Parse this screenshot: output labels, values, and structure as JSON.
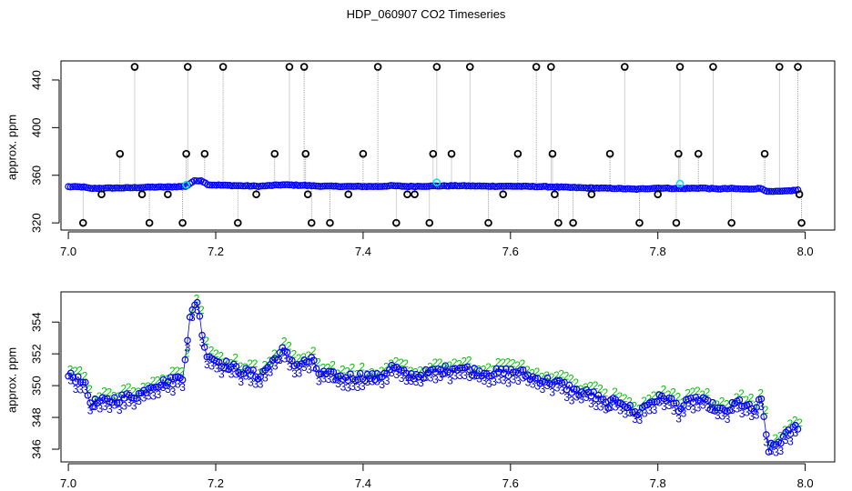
{
  "figure": {
    "title": "HDP_060907  CO2 Timeseries"
  },
  "chart_data": [
    {
      "type": "scatter",
      "title": "",
      "xlabel": "",
      "ylabel": "approx. ppm",
      "xlim": [
        6.99,
        8.04
      ],
      "ylim": [
        314,
        456
      ],
      "xticks": [
        7.0,
        7.2,
        7.4,
        7.6,
        7.8,
        8.0
      ],
      "xtick_labels": [
        "7.0",
        "7.2",
        "7.4",
        "7.6",
        "7.8",
        "8.0"
      ],
      "yticks": [
        320,
        360,
        400,
        440
      ],
      "ytick_labels": [
        "320",
        "360",
        "400",
        "440"
      ],
      "grid": false,
      "legend": "none",
      "colors": {
        "main": "#0000ff",
        "highlight": "#00e5ee",
        "outlier": "#000000",
        "spike_line": "#8c8c8c"
      },
      "baseline": [
        {
          "x": 7.0,
          "y": 350.4
        },
        {
          "x": 7.02,
          "y": 350.2
        },
        {
          "x": 7.03,
          "y": 348.9
        },
        {
          "x": 7.05,
          "y": 349.2
        },
        {
          "x": 7.08,
          "y": 349.4
        },
        {
          "x": 7.11,
          "y": 350.0
        },
        {
          "x": 7.14,
          "y": 350.2
        },
        {
          "x": 7.16,
          "y": 350.8
        },
        {
          "x": 7.17,
          "y": 355.2
        },
        {
          "x": 7.18,
          "y": 355.6
        },
        {
          "x": 7.19,
          "y": 352.0
        },
        {
          "x": 7.22,
          "y": 351.4
        },
        {
          "x": 7.26,
          "y": 350.8
        },
        {
          "x": 7.29,
          "y": 352.0
        },
        {
          "x": 7.32,
          "y": 351.5
        },
        {
          "x": 7.34,
          "y": 350.9
        },
        {
          "x": 7.38,
          "y": 350.6
        },
        {
          "x": 7.42,
          "y": 350.6
        },
        {
          "x": 7.44,
          "y": 351.2
        },
        {
          "x": 7.46,
          "y": 350.6
        },
        {
          "x": 7.5,
          "y": 351.0
        },
        {
          "x": 7.53,
          "y": 351.2
        },
        {
          "x": 7.57,
          "y": 350.8
        },
        {
          "x": 7.6,
          "y": 350.8
        },
        {
          "x": 7.64,
          "y": 350.5
        },
        {
          "x": 7.66,
          "y": 350.2
        },
        {
          "x": 7.7,
          "y": 349.4
        },
        {
          "x": 7.74,
          "y": 349.0
        },
        {
          "x": 7.77,
          "y": 348.3
        },
        {
          "x": 7.8,
          "y": 349.3
        },
        {
          "x": 7.83,
          "y": 348.8
        },
        {
          "x": 7.86,
          "y": 349.3
        },
        {
          "x": 7.88,
          "y": 348.5
        },
        {
          "x": 7.9,
          "y": 348.9
        },
        {
          "x": 7.92,
          "y": 348.3
        },
        {
          "x": 7.94,
          "y": 349.0
        },
        {
          "x": 7.95,
          "y": 346.2
        },
        {
          "x": 7.97,
          "y": 346.5
        },
        {
          "x": 7.99,
          "y": 347.6
        }
      ],
      "highlight_points": [
        {
          "x": 7.16,
          "y": 352
        },
        {
          "x": 7.5,
          "y": 354
        },
        {
          "x": 7.83,
          "y": 353
        }
      ],
      "outliers": [
        {
          "x": 7.02,
          "y": 320
        },
        {
          "x": 7.045,
          "y": 344
        },
        {
          "x": 7.07,
          "y": 378
        },
        {
          "x": 7.09,
          "y": 451
        },
        {
          "x": 7.1,
          "y": 344
        },
        {
          "x": 7.11,
          "y": 320
        },
        {
          "x": 7.135,
          "y": 344
        },
        {
          "x": 7.155,
          "y": 320
        },
        {
          "x": 7.16,
          "y": 378
        },
        {
          "x": 7.162,
          "y": 451
        },
        {
          "x": 7.185,
          "y": 378
        },
        {
          "x": 7.21,
          "y": 451
        },
        {
          "x": 7.23,
          "y": 320
        },
        {
          "x": 7.255,
          "y": 344
        },
        {
          "x": 7.28,
          "y": 378
        },
        {
          "x": 7.3,
          "y": 451
        },
        {
          "x": 7.32,
          "y": 451
        },
        {
          "x": 7.322,
          "y": 378
        },
        {
          "x": 7.325,
          "y": 344
        },
        {
          "x": 7.33,
          "y": 320
        },
        {
          "x": 7.355,
          "y": 320
        },
        {
          "x": 7.38,
          "y": 344
        },
        {
          "x": 7.4,
          "y": 378
        },
        {
          "x": 7.42,
          "y": 451
        },
        {
          "x": 7.445,
          "y": 320
        },
        {
          "x": 7.46,
          "y": 344
        },
        {
          "x": 7.47,
          "y": 344
        },
        {
          "x": 7.49,
          "y": 320
        },
        {
          "x": 7.495,
          "y": 378
        },
        {
          "x": 7.5,
          "y": 451
        },
        {
          "x": 7.52,
          "y": 378
        },
        {
          "x": 7.545,
          "y": 451
        },
        {
          "x": 7.57,
          "y": 320
        },
        {
          "x": 7.59,
          "y": 344
        },
        {
          "x": 7.61,
          "y": 378
        },
        {
          "x": 7.635,
          "y": 451
        },
        {
          "x": 7.655,
          "y": 451
        },
        {
          "x": 7.657,
          "y": 378
        },
        {
          "x": 7.66,
          "y": 344
        },
        {
          "x": 7.665,
          "y": 320
        },
        {
          "x": 7.685,
          "y": 320
        },
        {
          "x": 7.71,
          "y": 344
        },
        {
          "x": 7.735,
          "y": 378
        },
        {
          "x": 7.755,
          "y": 451
        },
        {
          "x": 7.775,
          "y": 320
        },
        {
          "x": 7.8,
          "y": 344
        },
        {
          "x": 7.825,
          "y": 320
        },
        {
          "x": 7.828,
          "y": 378
        },
        {
          "x": 7.83,
          "y": 451
        },
        {
          "x": 7.855,
          "y": 378
        },
        {
          "x": 7.875,
          "y": 451
        },
        {
          "x": 7.9,
          "y": 320
        },
        {
          "x": 7.945,
          "y": 378
        },
        {
          "x": 7.965,
          "y": 451
        },
        {
          "x": 7.99,
          "y": 451
        },
        {
          "x": 7.992,
          "y": 344
        },
        {
          "x": 7.995,
          "y": 320
        }
      ]
    },
    {
      "type": "scatter",
      "title": "",
      "xlabel": "",
      "ylabel": "approx. ppm",
      "xlim": [
        6.99,
        8.04
      ],
      "ylim": [
        345.2,
        355.9
      ],
      "xticks": [
        7.0,
        7.2,
        7.4,
        7.6,
        7.8,
        8.0
      ],
      "xtick_labels": [
        "7.0",
        "7.2",
        "7.4",
        "7.6",
        "7.8",
        "8.0"
      ],
      "yticks": [
        346,
        348,
        350,
        352,
        354
      ],
      "ytick_labels": [
        "346",
        "348",
        "350",
        "352",
        "354"
      ],
      "grid": false,
      "legend": "none",
      "marker_labels": [
        "2",
        "3"
      ],
      "series": [
        {
          "color": "#00c000",
          "marker": "2",
          "offset": 0.4
        },
        {
          "color": "#0000cc",
          "marker": "3",
          "offset": -0.25
        },
        {
          "color": "#0000ff",
          "marker": "o",
          "offset": 0.0
        }
      ],
      "baseline": [
        {
          "x": 7.0,
          "y": 350.6
        },
        {
          "x": 7.02,
          "y": 350.4
        },
        {
          "x": 7.03,
          "y": 348.9
        },
        {
          "x": 7.05,
          "y": 349.0
        },
        {
          "x": 7.08,
          "y": 349.3
        },
        {
          "x": 7.1,
          "y": 349.5
        },
        {
          "x": 7.11,
          "y": 350.0
        },
        {
          "x": 7.14,
          "y": 350.3
        },
        {
          "x": 7.155,
          "y": 350.6
        },
        {
          "x": 7.165,
          "y": 354.2
        },
        {
          "x": 7.175,
          "y": 355.4
        },
        {
          "x": 7.185,
          "y": 352.2
        },
        {
          "x": 7.2,
          "y": 351.6
        },
        {
          "x": 7.23,
          "y": 351.0
        },
        {
          "x": 7.26,
          "y": 350.6
        },
        {
          "x": 7.29,
          "y": 352.2
        },
        {
          "x": 7.31,
          "y": 351.3
        },
        {
          "x": 7.33,
          "y": 351.6
        },
        {
          "x": 7.34,
          "y": 350.8
        },
        {
          "x": 7.37,
          "y": 350.5
        },
        {
          "x": 7.4,
          "y": 350.6
        },
        {
          "x": 7.42,
          "y": 350.5
        },
        {
          "x": 7.44,
          "y": 351.2
        },
        {
          "x": 7.46,
          "y": 350.6
        },
        {
          "x": 7.48,
          "y": 350.7
        },
        {
          "x": 7.5,
          "y": 350.9
        },
        {
          "x": 7.53,
          "y": 351.2
        },
        {
          "x": 7.55,
          "y": 350.9
        },
        {
          "x": 7.58,
          "y": 350.8
        },
        {
          "x": 7.61,
          "y": 350.9
        },
        {
          "x": 7.63,
          "y": 350.5
        },
        {
          "x": 7.65,
          "y": 350.3
        },
        {
          "x": 7.67,
          "y": 350.1
        },
        {
          "x": 7.69,
          "y": 349.6
        },
        {
          "x": 7.71,
          "y": 349.5
        },
        {
          "x": 7.73,
          "y": 348.8
        },
        {
          "x": 7.75,
          "y": 349.1
        },
        {
          "x": 7.77,
          "y": 348.2
        },
        {
          "x": 7.79,
          "y": 349.0
        },
        {
          "x": 7.81,
          "y": 349.3
        },
        {
          "x": 7.83,
          "y": 348.6
        },
        {
          "x": 7.85,
          "y": 349.2
        },
        {
          "x": 7.87,
          "y": 348.8
        },
        {
          "x": 7.89,
          "y": 348.3
        },
        {
          "x": 7.91,
          "y": 349.0
        },
        {
          "x": 7.93,
          "y": 348.4
        },
        {
          "x": 7.94,
          "y": 349.1
        },
        {
          "x": 7.95,
          "y": 346.0
        },
        {
          "x": 7.96,
          "y": 346.3
        },
        {
          "x": 7.975,
          "y": 346.9
        },
        {
          "x": 7.99,
          "y": 347.5
        }
      ]
    }
  ]
}
